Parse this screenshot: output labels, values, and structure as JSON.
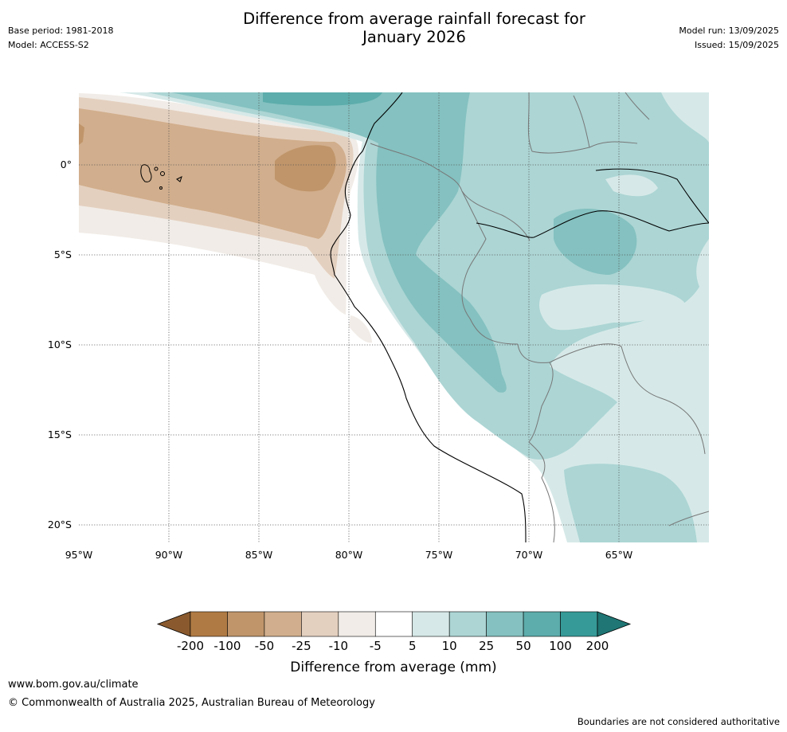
{
  "title_line1": "Difference from average rainfall forecast for",
  "title_line2": "January 2026",
  "meta_left": {
    "base_period": "Base period: 1981-2018",
    "model": "Model: ACCESS-S2"
  },
  "meta_right": {
    "model_run": "Model run: 13/09/2025",
    "issued": "Issued: 15/09/2025"
  },
  "map": {
    "lat_labels": [
      "0°",
      "5°S",
      "10°S",
      "15°S",
      "20°S"
    ],
    "lon_labels": [
      "95°W",
      "90°W",
      "85°W",
      "80°W",
      "75°W",
      "70°W",
      "65°W"
    ]
  },
  "colorbar": {
    "title": "Difference from average (mm)",
    "ticks": [
      "-200",
      "-100",
      "-50",
      "-25",
      "-10",
      "-5",
      "5",
      "10",
      "25",
      "50",
      "100",
      "200"
    ],
    "colors": [
      "#8a5a2e",
      "#b07a44",
      "#c0956a",
      "#d1ae8d",
      "#e4d0bf",
      "#f1ece7",
      "#ffffff",
      "#d6e9e8",
      "#acd5d4",
      "#84c1c0",
      "#5cadac",
      "#369a98",
      "#1f7674"
    ]
  },
  "footer": {
    "url": "www.bom.gov.au/climate",
    "copyright": "© Commonwealth of Australia 2025, Australian Bureau of Meteorology",
    "note": "Boundaries are not considered authoritative"
  }
}
